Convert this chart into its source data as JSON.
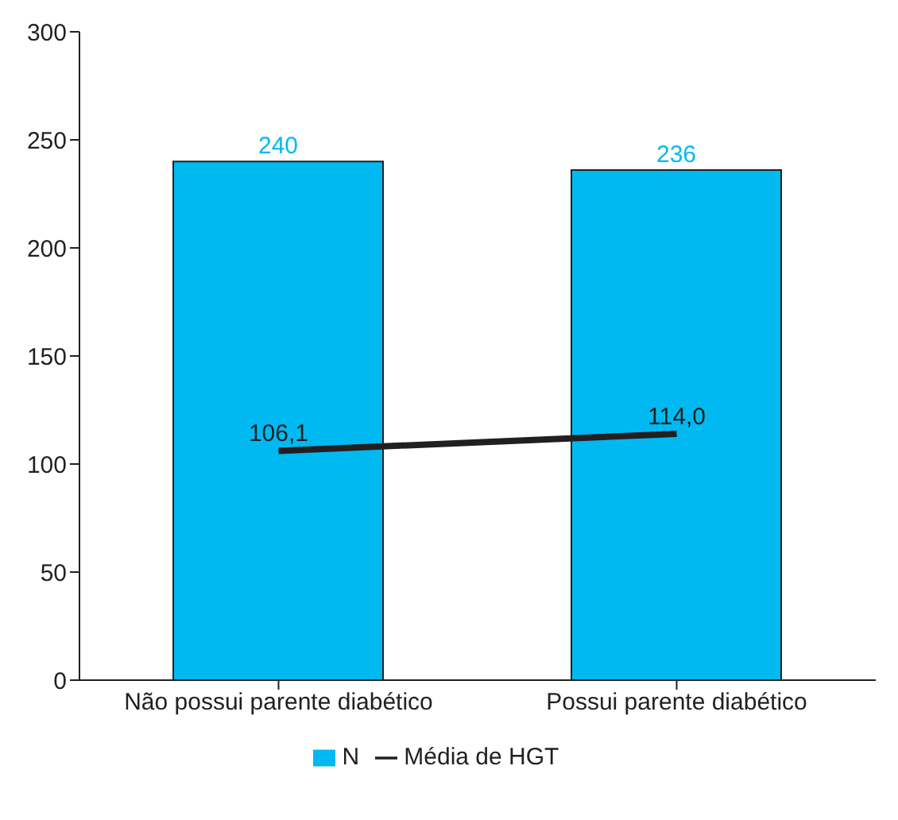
{
  "chart_data": {
    "type": "bar",
    "categories": [
      "Não possui parente diabético",
      "Possui parente diabético"
    ],
    "series": [
      {
        "name": "N",
        "color": "#00b9f1",
        "values": [
          240,
          236
        ],
        "value_labels": [
          "240",
          "236"
        ]
      },
      {
        "name": "Média de HGT",
        "type": "line",
        "color": "#231f20",
        "values": [
          106.1,
          114.0
        ],
        "value_labels": [
          "106,1",
          "114,0"
        ]
      }
    ],
    "ylim": [
      0,
      300
    ],
    "yticks": [
      0,
      50,
      100,
      150,
      200,
      250,
      300
    ],
    "grid": false,
    "legend": "bottom",
    "marker": "none"
  }
}
